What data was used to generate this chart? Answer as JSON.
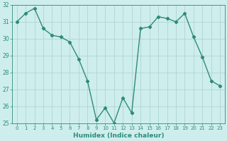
{
  "x": [
    0,
    1,
    2,
    3,
    4,
    5,
    6,
    7,
    8,
    9,
    10,
    11,
    12,
    13,
    14,
    15,
    16,
    17,
    18,
    19,
    20,
    21,
    22,
    23
  ],
  "y": [
    31.0,
    31.5,
    31.8,
    30.6,
    30.2,
    30.1,
    29.8,
    28.8,
    27.5,
    25.2,
    25.9,
    25.0,
    26.5,
    25.6,
    30.6,
    30.7,
    31.3,
    31.2,
    31.0,
    31.5,
    30.1,
    28.9,
    27.5,
    27.2
  ],
  "color": "#2e8b7a",
  "bg_color": "#ceeeed",
  "grid_color": "#aed4d2",
  "xlabel": "Humidex (Indice chaleur)",
  "ylim": [
    25,
    32
  ],
  "xlim": [
    -0.5,
    23.5
  ],
  "yticks": [
    25,
    26,
    27,
    28,
    29,
    30,
    31,
    32
  ],
  "xticks": [
    0,
    1,
    2,
    3,
    4,
    5,
    6,
    7,
    8,
    9,
    10,
    11,
    12,
    13,
    14,
    15,
    16,
    17,
    18,
    19,
    20,
    21,
    22,
    23
  ],
  "xtick_labels": [
    "0",
    "1",
    "2",
    "3",
    "4",
    "5",
    "6",
    "7",
    "8",
    "9",
    "10",
    "11",
    "12",
    "13",
    "14",
    "15",
    "16",
    "17",
    "18",
    "19",
    "20",
    "21",
    "22",
    "23"
  ],
  "marker": "D",
  "marker_size": 2.2,
  "line_width": 1.0
}
